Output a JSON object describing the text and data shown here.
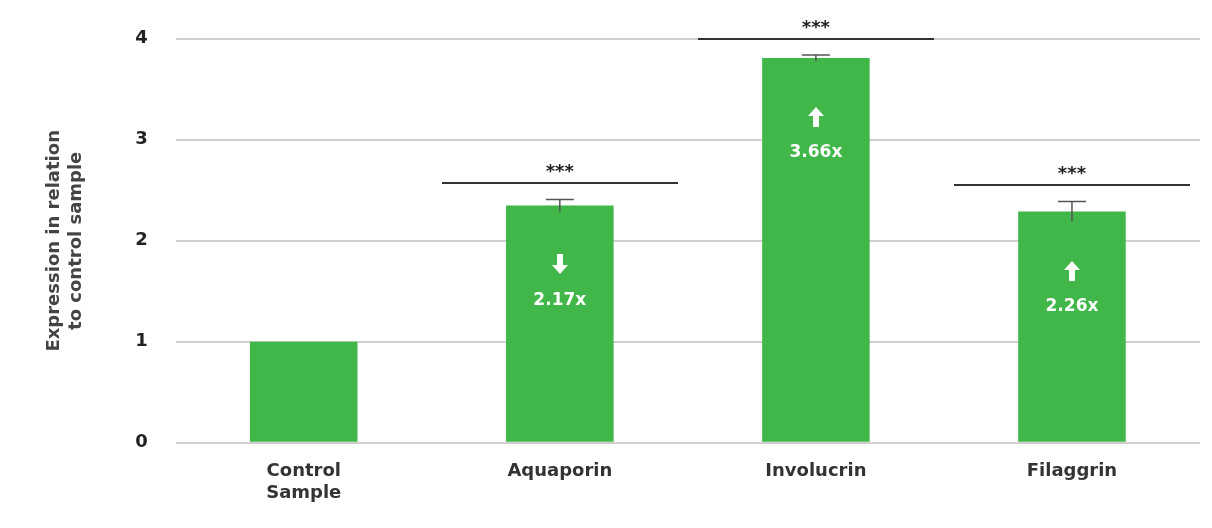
{
  "chart_data": {
    "type": "bar",
    "ylabel": "Expression in relation to control sample",
    "categories": [
      "Control Sample",
      "Aquaporin",
      "Involucrin",
      "Filaggrin"
    ],
    "values": [
      1.0,
      2.35,
      3.81,
      2.29
    ],
    "errors": [
      null,
      0.06,
      0.03,
      0.1
    ],
    "color": "#41b649",
    "ylim": [
      0,
      4
    ],
    "yticks": [
      0,
      1,
      2,
      3,
      4
    ],
    "grid": "y",
    "annotations": [
      "2.17x",
      "3.66x",
      "2.26x",
      "***",
      "***",
      "***"
    ]
  }
}
